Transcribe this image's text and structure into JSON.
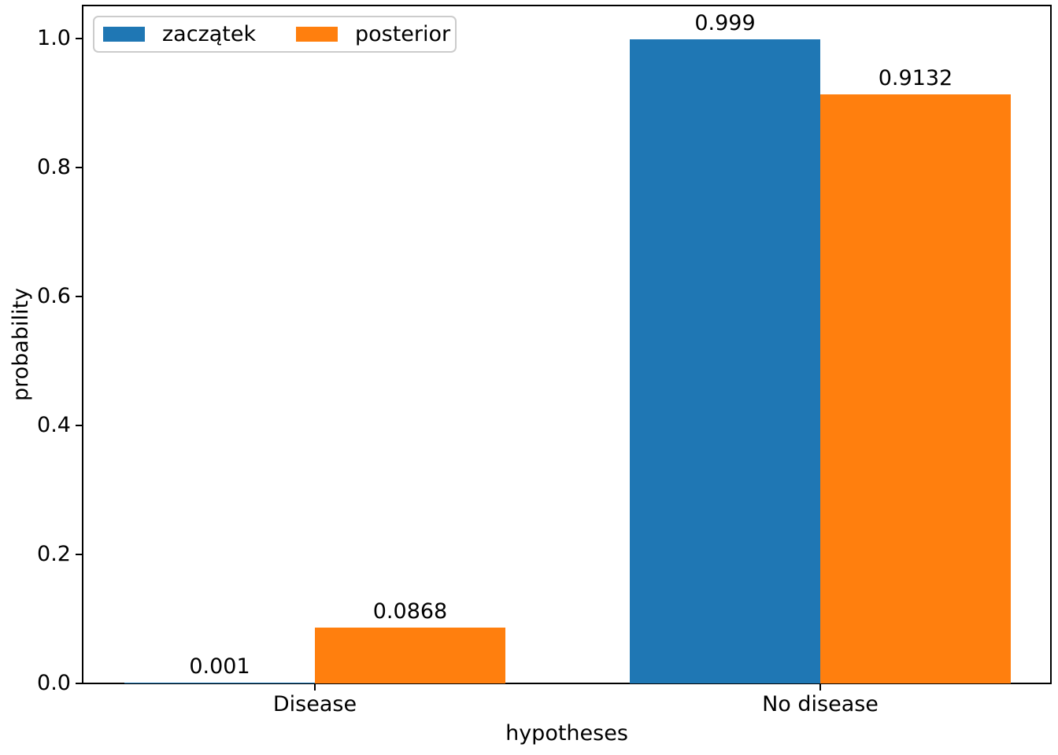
{
  "chart_data": {
    "type": "bar",
    "title": "",
    "xlabel": "hypotheses",
    "ylabel": "probability",
    "categories": [
      "Disease",
      "No disease"
    ],
    "series": [
      {
        "name": "zaczątek",
        "color": "#1f77b4",
        "values": [
          0.001,
          0.999
        ],
        "value_labels": [
          "0.001",
          "0.999"
        ]
      },
      {
        "name": "posterior",
        "color": "#ff7f0e",
        "values": [
          0.0868,
          0.9132
        ],
        "value_labels": [
          "0.0868",
          "0.9132"
        ]
      }
    ],
    "ylim": [
      0.0,
      1.052
    ],
    "yticks": [
      0.0,
      0.2,
      0.4,
      0.6,
      0.8,
      1.0
    ],
    "ytick_labels": [
      "0.0",
      "0.2",
      "0.4",
      "0.6",
      "0.8",
      "1.0"
    ],
    "legend_position": "upper left",
    "grid": false,
    "bar_group_layout": "side-by-side, series bars touch at category tick"
  }
}
